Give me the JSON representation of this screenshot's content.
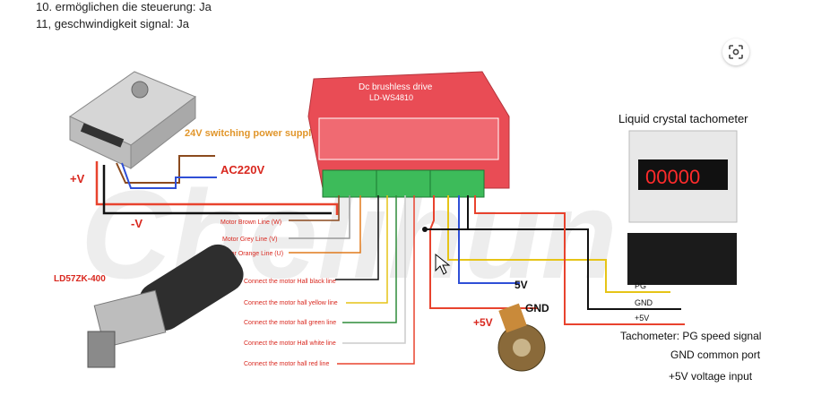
{
  "text": {
    "line1": "10. ermöglichen die steuerung: Ja",
    "line2": "11, geschwindigkeit signal: Ja"
  },
  "icons": {
    "lens": "visual-search-icon"
  },
  "diagram": {
    "psu_label": "24V switching power supply",
    "ac_label": "AC220V",
    "plus_v": "+V",
    "minus_v": "-V",
    "driver_title": "Dc brushless drive",
    "driver_model": "LD-WS4810",
    "motor_model": "LD57ZK-400",
    "tacho_title": "Liquid crystal tachometer",
    "tacho_display": "00000",
    "motor_lines": [
      "Motor Brown Line (W)",
      "Motor Grey Line (V)",
      "Motor Orange Line (U)"
    ],
    "hall_lines": [
      "Connect the motor Hall black line",
      "Connect the motor hall yellow line",
      "Connect the motor hall green line",
      "Connect the motor Hall white line",
      "Connect the motor hall red line"
    ],
    "pot_5v": "5V",
    "pot_gnd": "GND",
    "pot_plus5v": "+5V",
    "tacho_pg": "PG",
    "tacho_gnd": "GND",
    "tacho_5v": "+5V",
    "notes": [
      "Tachometer: PG speed signal",
      "GND common port",
      "+5V voltage input"
    ],
    "watermark": "Chelihun"
  },
  "colors": {
    "driver": "#e94c55",
    "terminal": "#3dbb5a",
    "red_wire": "#e8432e",
    "blue_wire": "#2f4fd6",
    "yellow_wire": "#e6c417",
    "green_wire": "#2e8b3a",
    "orange_wire": "#e07a1c",
    "brown_wire": "#8b4a1e",
    "label_red": "#d9281f"
  }
}
